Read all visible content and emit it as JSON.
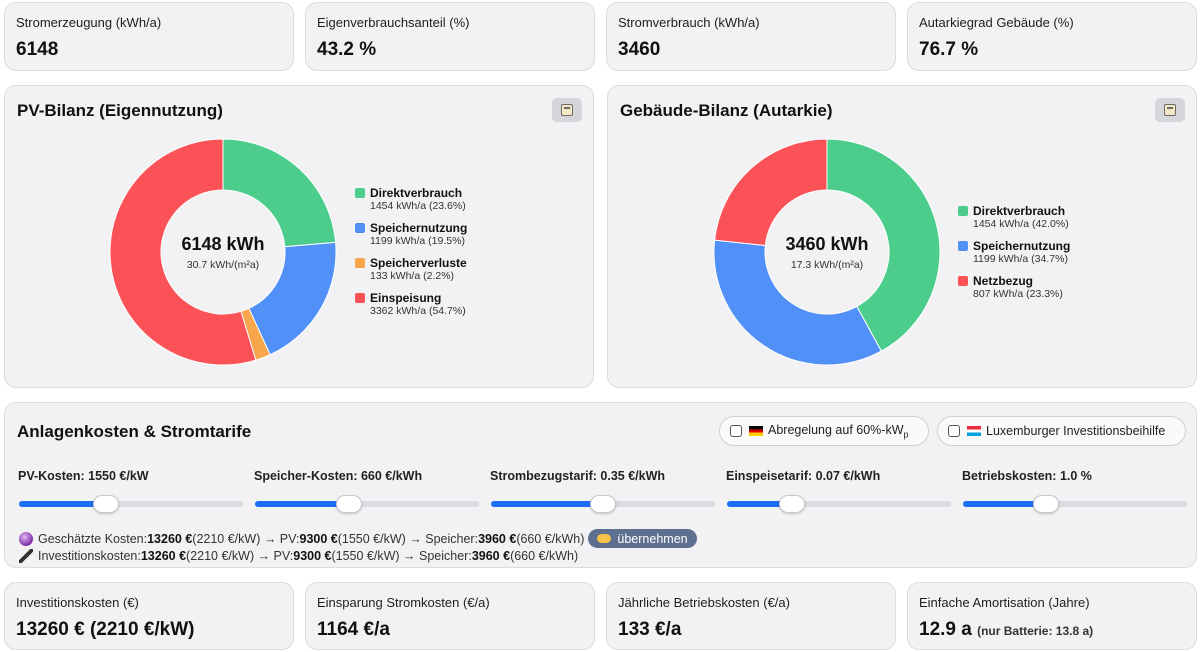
{
  "kpis_top": [
    {
      "label": "Stromerzeugung (kWh/a)",
      "value": "6148"
    },
    {
      "label": "Eigenverbrauchsanteil (%)",
      "value": "43.2 %"
    },
    {
      "label": "Stromverbrauch (kWh/a)",
      "value": "3460"
    },
    {
      "label": "Autarkiegrad Gebäude (%)",
      "value": "76.7 %"
    }
  ],
  "pv_bilanz": {
    "title": "PV-Bilanz (Eigennutzung)",
    "center_value": "6148 kWh",
    "center_sub": "30.7 kWh/(m²a)",
    "button_icon": "calculator-icon",
    "segments": [
      {
        "name": "Direktverbrauch",
        "value": 1454,
        "detail": "1454 kWh/a (23.6%)",
        "color": "#4ccd8c"
      },
      {
        "name": "Speichernutzung",
        "value": 1199,
        "detail": "1199 kWh/a (19.5%)",
        "color": "#5190f7"
      },
      {
        "name": "Speicherverluste",
        "value": 133,
        "detail": "133 kWh/a (2.2%)",
        "color": "#f7a64b"
      },
      {
        "name": "Einspeisung",
        "value": 3362,
        "detail": "3362 kWh/a (54.7%)",
        "color": "#fb5257"
      }
    ]
  },
  "gebaeude_bilanz": {
    "title": "Gebäude-Bilanz (Autarkie)",
    "center_value": "3460 kWh",
    "center_sub": "17.3 kWh/(m²a)",
    "button_icon": "calculator-icon",
    "segments": [
      {
        "name": "Direktverbrauch",
        "value": 1454,
        "detail": "1454 kWh/a (42.0%)",
        "color": "#4ccd8c"
      },
      {
        "name": "Speichernutzung",
        "value": 1199,
        "detail": "1199 kWh/a (34.7%)",
        "color": "#5190f7"
      },
      {
        "name": "Netzbezug",
        "value": 807,
        "detail": "807 kWh/a (23.3%)",
        "color": "#fb5257"
      }
    ]
  },
  "kosten": {
    "title": "Anlagenkosten & Stromtarife",
    "toggle_abregelung": {
      "prefix": "Abregelung auf 60%-kW",
      "sub": "p",
      "checked": false,
      "icon": "germany-flag-icon"
    },
    "toggle_lux": {
      "label": "Luxemburger Investitionsbeihilfe",
      "checked": false,
      "icon": "luxembourg-flag-icon"
    },
    "sliders": [
      {
        "label": "PV-Kosten: 1550 €/kW",
        "fraction": 0.39
      },
      {
        "label": "Speicher-Kosten: 660 €/kWh",
        "fraction": 0.42
      },
      {
        "label": "Strombezugstarif: 0.35 €/kWh",
        "fraction": 0.5
      },
      {
        "label": "Einspeisetarif: 0.07 €/kWh",
        "fraction": 0.29
      },
      {
        "label": "Betriebskosten: 1.0 %",
        "fraction": 0.37
      }
    ],
    "estimate": {
      "icon": "crystal-ball-icon",
      "t1": "Geschätzte Kosten: ",
      "b1": "13260 €",
      "t2": " (2210 €/kW) → PV: ",
      "b2": "9300 €",
      "t3": " (1550 €/kW) → Speicher: ",
      "b3": "3960 €",
      "t4": " (660 €/kWh)",
      "apply_label": "übernehmen",
      "apply_icon": "pointing-hand-icon"
    },
    "invest": {
      "icon": "pen-icon",
      "t1": "Investitionskosten: ",
      "b1": "13260 €",
      "t2": " (2210 €/kW) → PV: ",
      "b2": "9300 €",
      "t3": " (1550 €/kW) → Speicher: ",
      "b3": "3960 €",
      "t4": " (660 €/kWh)"
    }
  },
  "kpis_bottom": [
    {
      "label": "Investitionskosten (€)",
      "value": "13260 € (2210 €/kW)",
      "sub": ""
    },
    {
      "label": "Einsparung Stromkosten (€/a)",
      "value": "1164 €/a",
      "sub": ""
    },
    {
      "label": "Jährliche Betriebskosten (€/a)",
      "value": "133 €/a",
      "sub": ""
    },
    {
      "label": "Einfache Amortisation (Jahre)",
      "value": "12.9 a",
      "sub": "(nur Batterie: 13.8 a)"
    }
  ]
}
